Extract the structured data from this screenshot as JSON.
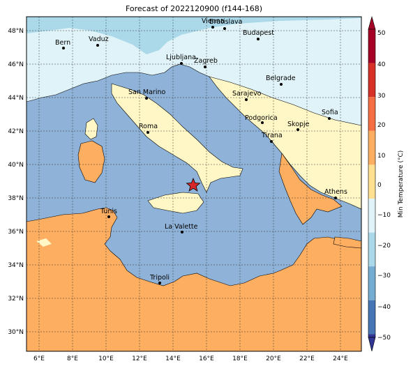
{
  "title": "Forecast of 2022120900 (f144-168)",
  "colorbar": {
    "label": "Min Temperature (°C)",
    "ticks": [
      "50",
      "40",
      "30",
      "20",
      "10",
      "0",
      "−10",
      "−20",
      "−30",
      "−40",
      "−50"
    ],
    "colors": [
      "#a50026",
      "#d73027",
      "#f46d43",
      "#fdae61",
      "#fee090",
      "#e0f3f8",
      "#abd9e9",
      "#74add1",
      "#4575b4",
      "#313695"
    ],
    "sea_color": "#8fb2d8"
  },
  "axes": {
    "x_ticks": [
      "6°E",
      "8°E",
      "10°E",
      "12°E",
      "14°E",
      "16°E",
      "18°E",
      "20°E",
      "22°E",
      "24°E"
    ],
    "y_ticks": [
      "48°N",
      "46°N",
      "44°N",
      "42°N",
      "40°N",
      "38°N",
      "36°N",
      "34°N",
      "32°N",
      "30°N"
    ]
  },
  "cities": [
    {
      "name": "Bern"
    },
    {
      "name": "Vaduz"
    },
    {
      "name": "Vienna"
    },
    {
      "name": "Bratislava"
    },
    {
      "name": "Budapest"
    },
    {
      "name": "Ljubljana"
    },
    {
      "name": "Zagreb"
    },
    {
      "name": "Belgrade"
    },
    {
      "name": "San Marino"
    },
    {
      "name": "Sarajevo"
    },
    {
      "name": "Roma"
    },
    {
      "name": "Podgorica"
    },
    {
      "name": "Skopje"
    },
    {
      "name": "Sofia"
    },
    {
      "name": "Tirana"
    },
    {
      "name": "Athens"
    },
    {
      "name": "Tunis"
    },
    {
      "name": "La Valette"
    },
    {
      "name": "Tripoli"
    }
  ],
  "marker": {
    "type": "star",
    "color": "#d62728"
  }
}
